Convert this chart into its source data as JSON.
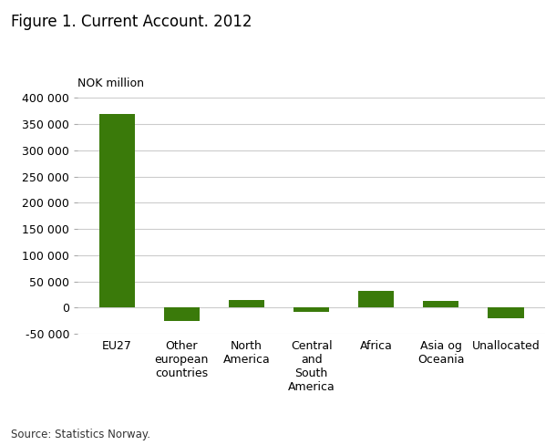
{
  "title": "Figure 1. Current Account. 2012",
  "ylabel": "NOK million",
  "source": "Source: Statistics Norway.",
  "categories": [
    "EU27",
    "Other\neuropean\ncountries",
    "North\nAmerica",
    "Central\nand\nSouth\nAmerica",
    "Africa",
    "Asia og\nOceania",
    "Unallocated"
  ],
  "values": [
    370000,
    -25000,
    15000,
    -8000,
    32000,
    12000,
    -20000
  ],
  "bar_color": "#3a7a0a",
  "ylim": [
    -50000,
    400000
  ],
  "yticks": [
    -50000,
    0,
    50000,
    100000,
    150000,
    200000,
    250000,
    300000,
    350000,
    400000
  ],
  "background_color": "#ffffff",
  "grid_color": "#cccccc",
  "title_fontsize": 12,
  "label_fontsize": 9,
  "tick_fontsize": 9,
  "source_fontsize": 8.5
}
